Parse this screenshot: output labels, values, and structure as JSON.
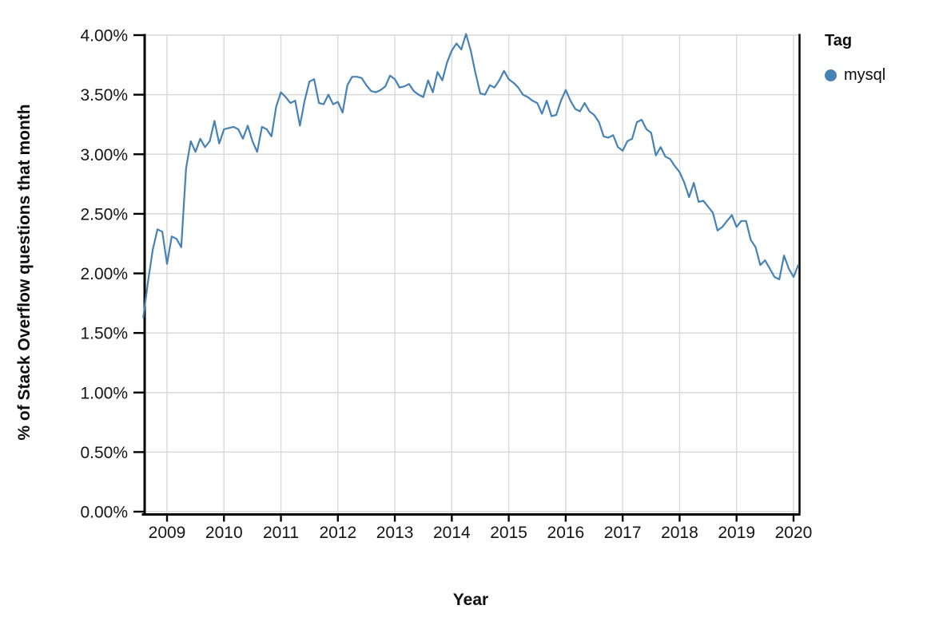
{
  "page": {
    "background": "#ffffff",
    "text_color": "#0d0d0d"
  },
  "legend": {
    "title": "Tag",
    "items": [
      {
        "label": "mysql",
        "color": "#4682b4"
      }
    ]
  },
  "chart_data": {
    "type": "line",
    "title": "",
    "xlabel": "Year",
    "ylabel": "% of Stack Overflow questions that month",
    "x_ticks": [
      "2009",
      "2010",
      "2011",
      "2012",
      "2013",
      "2014",
      "2015",
      "2016",
      "2017",
      "2018",
      "2019",
      "2020"
    ],
    "y_ticks": [
      "0.00%",
      "0.50%",
      "1.00%",
      "1.50%",
      "2.00%",
      "2.50%",
      "3.00%",
      "3.50%",
      "4.00%"
    ],
    "ylim": [
      0,
      4
    ],
    "xlim_years": [
      2008.58,
      2020.12
    ],
    "grid": true,
    "gridline_color": "#d9d9d9",
    "axis_color": "#000000",
    "legend_position": "top-right",
    "series": [
      {
        "name": "mysql",
        "color": "#4682b4",
        "points": [
          [
            "2008-08",
            1.63
          ],
          [
            "2008-09",
            1.93
          ],
          [
            "2008-10",
            2.2
          ],
          [
            "2008-11",
            2.37
          ],
          [
            "2008-12",
            2.35
          ],
          [
            "2009-01",
            2.08
          ],
          [
            "2009-02",
            2.31
          ],
          [
            "2009-03",
            2.29
          ],
          [
            "2009-04",
            2.22
          ],
          [
            "2009-05",
            2.88
          ],
          [
            "2009-06",
            3.11
          ],
          [
            "2009-07",
            3.02
          ],
          [
            "2009-08",
            3.13
          ],
          [
            "2009-09",
            3.06
          ],
          [
            "2009-10",
            3.11
          ],
          [
            "2009-11",
            3.28
          ],
          [
            "2009-12",
            3.09
          ],
          [
            "2010-01",
            3.21
          ],
          [
            "2010-02",
            3.22
          ],
          [
            "2010-03",
            3.23
          ],
          [
            "2010-04",
            3.21
          ],
          [
            "2010-05",
            3.13
          ],
          [
            "2010-06",
            3.24
          ],
          [
            "2010-07",
            3.11
          ],
          [
            "2010-08",
            3.02
          ],
          [
            "2010-09",
            3.23
          ],
          [
            "2010-10",
            3.21
          ],
          [
            "2010-11",
            3.15
          ],
          [
            "2010-12",
            3.4
          ],
          [
            "2011-01",
            3.52
          ],
          [
            "2011-02",
            3.48
          ],
          [
            "2011-03",
            3.43
          ],
          [
            "2011-04",
            3.45
          ],
          [
            "2011-05",
            3.24
          ],
          [
            "2011-06",
            3.45
          ],
          [
            "2011-07",
            3.61
          ],
          [
            "2011-08",
            3.63
          ],
          [
            "2011-09",
            3.43
          ],
          [
            "2011-10",
            3.42
          ],
          [
            "2011-11",
            3.5
          ],
          [
            "2011-12",
            3.42
          ],
          [
            "2012-01",
            3.44
          ],
          [
            "2012-02",
            3.35
          ],
          [
            "2012-03",
            3.58
          ],
          [
            "2012-04",
            3.65
          ],
          [
            "2012-05",
            3.65
          ],
          [
            "2012-06",
            3.64
          ],
          [
            "2012-07",
            3.58
          ],
          [
            "2012-08",
            3.53
          ],
          [
            "2012-09",
            3.52
          ],
          [
            "2012-10",
            3.54
          ],
          [
            "2012-11",
            3.57
          ],
          [
            "2012-12",
            3.66
          ],
          [
            "2013-01",
            3.63
          ],
          [
            "2013-02",
            3.56
          ],
          [
            "2013-03",
            3.57
          ],
          [
            "2013-04",
            3.59
          ],
          [
            "2013-05",
            3.53
          ],
          [
            "2013-06",
            3.5
          ],
          [
            "2013-07",
            3.48
          ],
          [
            "2013-08",
            3.62
          ],
          [
            "2013-09",
            3.52
          ],
          [
            "2013-10",
            3.69
          ],
          [
            "2013-11",
            3.62
          ],
          [
            "2013-12",
            3.77
          ],
          [
            "2014-01",
            3.87
          ],
          [
            "2014-02",
            3.93
          ],
          [
            "2014-03",
            3.88
          ],
          [
            "2014-04",
            4.01
          ],
          [
            "2014-05",
            3.87
          ],
          [
            "2014-06",
            3.68
          ],
          [
            "2014-07",
            3.51
          ],
          [
            "2014-08",
            3.5
          ],
          [
            "2014-09",
            3.58
          ],
          [
            "2014-10",
            3.56
          ],
          [
            "2014-11",
            3.62
          ],
          [
            "2014-12",
            3.7
          ],
          [
            "2015-01",
            3.63
          ],
          [
            "2015-02",
            3.6
          ],
          [
            "2015-03",
            3.56
          ],
          [
            "2015-04",
            3.5
          ],
          [
            "2015-05",
            3.48
          ],
          [
            "2015-06",
            3.45
          ],
          [
            "2015-07",
            3.43
          ],
          [
            "2015-08",
            3.34
          ],
          [
            "2015-09",
            3.45
          ],
          [
            "2015-10",
            3.32
          ],
          [
            "2015-11",
            3.33
          ],
          [
            "2015-12",
            3.45
          ],
          [
            "2016-01",
            3.54
          ],
          [
            "2016-02",
            3.45
          ],
          [
            "2016-03",
            3.38
          ],
          [
            "2016-04",
            3.36
          ],
          [
            "2016-05",
            3.43
          ],
          [
            "2016-06",
            3.36
          ],
          [
            "2016-07",
            3.33
          ],
          [
            "2016-08",
            3.27
          ],
          [
            "2016-09",
            3.15
          ],
          [
            "2016-10",
            3.14
          ],
          [
            "2016-11",
            3.16
          ],
          [
            "2016-12",
            3.06
          ],
          [
            "2017-01",
            3.03
          ],
          [
            "2017-02",
            3.11
          ],
          [
            "2017-03",
            3.13
          ],
          [
            "2017-04",
            3.27
          ],
          [
            "2017-05",
            3.29
          ],
          [
            "2017-06",
            3.21
          ],
          [
            "2017-07",
            3.18
          ],
          [
            "2017-08",
            2.99
          ],
          [
            "2017-09",
            3.06
          ],
          [
            "2017-10",
            2.98
          ],
          [
            "2017-11",
            2.96
          ],
          [
            "2017-12",
            2.9
          ],
          [
            "2018-01",
            2.85
          ],
          [
            "2018-02",
            2.76
          ],
          [
            "2018-03",
            2.64
          ],
          [
            "2018-04",
            2.76
          ],
          [
            "2018-05",
            2.6
          ],
          [
            "2018-06",
            2.61
          ],
          [
            "2018-07",
            2.56
          ],
          [
            "2018-08",
            2.51
          ],
          [
            "2018-09",
            2.36
          ],
          [
            "2018-10",
            2.39
          ],
          [
            "2018-11",
            2.44
          ],
          [
            "2018-12",
            2.49
          ],
          [
            "2019-01",
            2.39
          ],
          [
            "2019-02",
            2.44
          ],
          [
            "2019-03",
            2.44
          ],
          [
            "2019-04",
            2.28
          ],
          [
            "2019-05",
            2.22
          ],
          [
            "2019-06",
            2.07
          ],
          [
            "2019-07",
            2.11
          ],
          [
            "2019-08",
            2.04
          ],
          [
            "2019-09",
            1.97
          ],
          [
            "2019-10",
            1.95
          ],
          [
            "2019-11",
            2.15
          ],
          [
            "2019-12",
            2.04
          ],
          [
            "2020-01",
            1.97
          ],
          [
            "2020-02",
            2.07
          ]
        ]
      }
    ]
  }
}
